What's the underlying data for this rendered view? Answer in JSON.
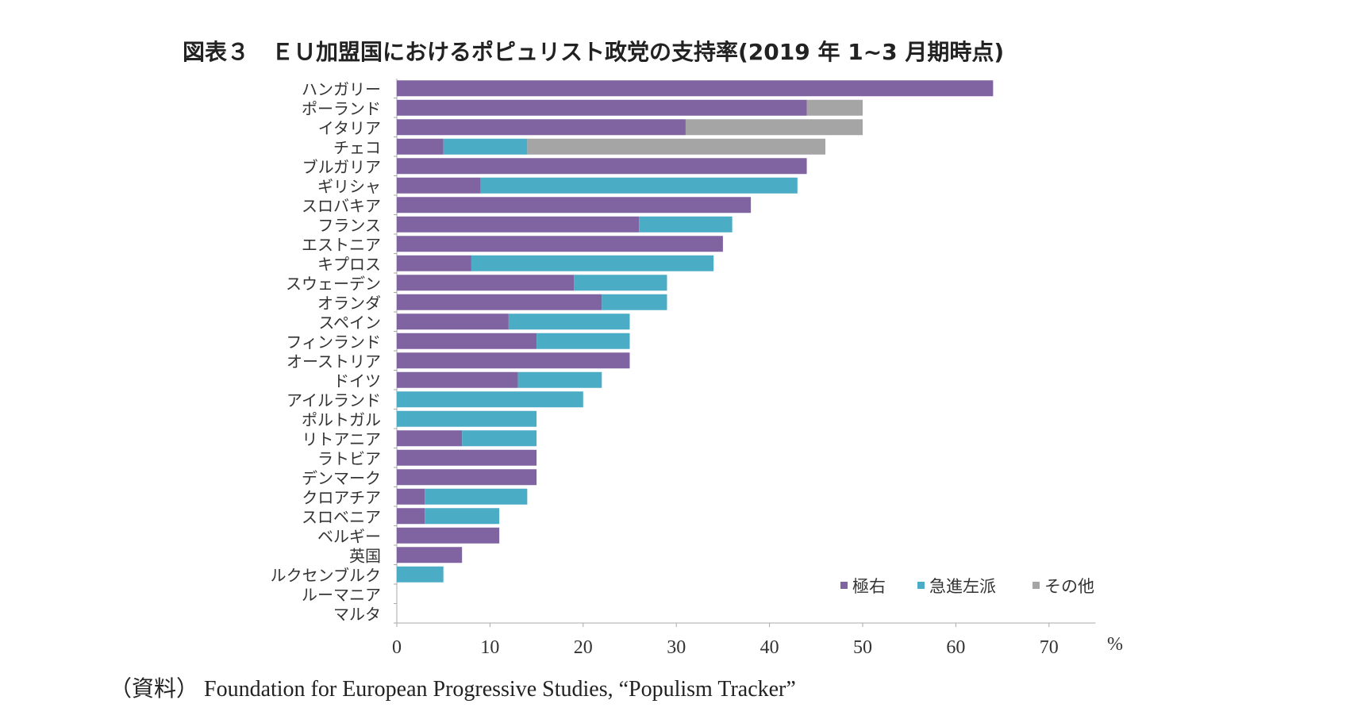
{
  "chart_data": {
    "type": "bar",
    "orientation": "horizontal",
    "stacked": true,
    "title": "図表３　ＥＵ加盟国におけるポピュリスト政党の支持率(2019 年 1~3 月期時点)",
    "unit_label": "%",
    "xlim": [
      0,
      75
    ],
    "xticks": [
      0,
      10,
      20,
      30,
      40,
      50,
      60,
      70
    ],
    "grid": false,
    "legend_position": "bottom-right",
    "categories": [
      "ハンガリー",
      "ポーランド",
      "イタリア",
      "チェコ",
      "ブルガリア",
      "ギリシャ",
      "スロバキア",
      "フランス",
      "エストニア",
      "キプロス",
      "スウェーデン",
      "オランダ",
      "スペイン",
      "フィンランド",
      "オーストリア",
      "ドイツ",
      "アイルランド",
      "ポルトガル",
      "リトアニア",
      "ラトビア",
      "デンマーク",
      "クロアチア",
      "スロベニア",
      "ベルギー",
      "英国",
      "ルクセンブルク",
      "ルーマニア",
      "マルタ"
    ],
    "series": [
      {
        "name": "極右",
        "color": "#8064A2",
        "values": [
          64,
          44,
          31,
          5,
          44,
          9,
          38,
          26,
          35,
          8,
          19,
          22,
          12,
          15,
          25,
          13,
          0,
          0,
          7,
          15,
          15,
          3,
          3,
          11,
          7,
          0,
          0,
          0
        ]
      },
      {
        "name": "急進左派",
        "color": "#4BACC6",
        "values": [
          0,
          0,
          0,
          9,
          0,
          34,
          0,
          10,
          0,
          26,
          10,
          7,
          13,
          10,
          0,
          9,
          20,
          15,
          8,
          0,
          0,
          11,
          8,
          0,
          0,
          5,
          0,
          0
        ]
      },
      {
        "name": "その他",
        "color": "#A5A5A5",
        "values": [
          0,
          6,
          19,
          32,
          0,
          0,
          0,
          0,
          0,
          0,
          0,
          0,
          0,
          0,
          0,
          0,
          0,
          0,
          0,
          0,
          0,
          0,
          0,
          0,
          0,
          0,
          0,
          0
        ]
      }
    ]
  },
  "source": "（資料）  Foundation for European Progressive Studies, “Populism Tracker”"
}
